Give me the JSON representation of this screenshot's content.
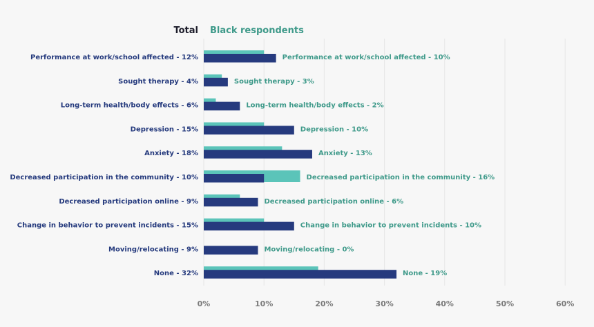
{
  "chart_data": {
    "type": "bar",
    "orientation": "horizontal",
    "legend": {
      "position": "top-left",
      "entries": [
        "Total",
        "Black respondents"
      ]
    },
    "colors": {
      "Total": "#263a7e",
      "Black respondents": "#5bc4b9",
      "total_label": "#253a7d",
      "black_label": "#3f9a8a"
    },
    "categories": [
      "Performance at work/school affected",
      "Sought therapy",
      "Long-term health/body effects",
      "Depression",
      "Anxiety",
      "Decreased participation in the community",
      "Decreased participation online",
      "Change in behavior to prevent incidents",
      "Moving/relocating",
      "None"
    ],
    "series": [
      {
        "name": "Total",
        "values": [
          12,
          4,
          6,
          15,
          18,
          10,
          9,
          15,
          9,
          32
        ]
      },
      {
        "name": "Black respondents",
        "values": [
          10,
          3,
          2,
          10,
          13,
          16,
          6,
          10,
          0,
          19
        ]
      }
    ],
    "total_labels": [
      "Performance at work/school affected - 12%",
      "Sought therapy - 4%",
      "Long-term health/body effects - 6%",
      "Depression - 15%",
      "Anxiety - 18%",
      "Decreased participation in the community - 10%",
      "Decreased participation online - 9%",
      "Change in behavior to prevent incidents - 15%",
      "Moving/relocating - 9%",
      "None - 32%"
    ],
    "black_labels": [
      "Performance at work/school affected - 10%",
      "Sought therapy - 3%",
      "Long-term health/body effects - 2%",
      "Depression - 10%",
      "Anxiety - 13%",
      "Decreased participation in the community - 16%",
      "Decreased participation online - 6%",
      "Change in behavior to prevent incidents - 10%",
      "Moving/relocating - 0%",
      "None - 19%"
    ],
    "xlim": [
      0,
      60
    ],
    "xticks": [
      "0%",
      "10%",
      "20%",
      "30%",
      "40%",
      "50%",
      "60%"
    ],
    "grid": true
  }
}
